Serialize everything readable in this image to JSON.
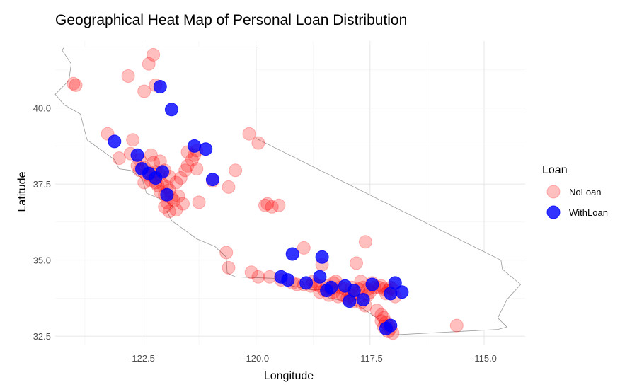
{
  "chart_data": {
    "type": "scatter",
    "title": "Geographical Heat Map of Personal Loan Distribution",
    "xlabel": "Longitude",
    "ylabel": "Latitude",
    "xlim": [
      -124.4,
      -114.1
    ],
    "ylim": [
      32.2,
      42.2
    ],
    "x_ticks": [
      -122.5,
      -120.0,
      -117.5,
      -115.0
    ],
    "x_tick_labels": [
      "-122.5",
      "-120.0",
      "-117.5",
      "-115.0"
    ],
    "y_ticks": [
      32.5,
      35.0,
      37.5,
      40.0
    ],
    "y_tick_labels": [
      "32.5",
      "35.0",
      "37.5",
      "40.0"
    ],
    "grid": true,
    "legend": {
      "title": "Loan",
      "placement": "right",
      "entries": [
        {
          "label": "NoLoan",
          "color": "#ff0000",
          "alpha": 0.25
        },
        {
          "label": "WithLoan",
          "color": "#0000ff",
          "alpha": 0.8
        }
      ]
    },
    "series": [
      {
        "name": "NoLoan",
        "color": "#ff0000",
        "points": [
          [
            -124.0,
            40.8
          ],
          [
            -123.95,
            40.75
          ],
          [
            -122.25,
            41.75
          ],
          [
            -122.35,
            41.45
          ],
          [
            -122.8,
            41.05
          ],
          [
            -122.45,
            40.55
          ],
          [
            -122.2,
            40.75
          ],
          [
            -123.25,
            39.15
          ],
          [
            -122.7,
            38.95
          ],
          [
            -120.15,
            39.15
          ],
          [
            -119.95,
            38.85
          ],
          [
            -123.0,
            38.35
          ],
          [
            -122.75,
            38.5
          ],
          [
            -122.55,
            38.3
          ],
          [
            -122.3,
            38.45
          ],
          [
            -122.6,
            38.1
          ],
          [
            -122.45,
            38.05
          ],
          [
            -122.25,
            38.2
          ],
          [
            -122.1,
            38.25
          ],
          [
            -122.55,
            37.95
          ],
          [
            -122.4,
            37.8
          ],
          [
            -122.3,
            37.85
          ],
          [
            -122.25,
            37.75
          ],
          [
            -122.2,
            37.9
          ],
          [
            -122.1,
            37.8
          ],
          [
            -122.0,
            37.95
          ],
          [
            -121.9,
            37.75
          ],
          [
            -122.45,
            37.55
          ],
          [
            -122.3,
            37.6
          ],
          [
            -122.2,
            37.55
          ],
          [
            -122.15,
            37.45
          ],
          [
            -122.05,
            37.5
          ],
          [
            -121.95,
            37.4
          ],
          [
            -122.1,
            37.25
          ],
          [
            -122.0,
            37.15
          ],
          [
            -121.9,
            37.3
          ],
          [
            -121.85,
            37.05
          ],
          [
            -121.8,
            36.95
          ],
          [
            -121.95,
            36.9
          ],
          [
            -122.0,
            36.75
          ],
          [
            -121.9,
            36.6
          ],
          [
            -121.75,
            36.65
          ],
          [
            -121.6,
            36.85
          ],
          [
            -121.7,
            37.1
          ],
          [
            -121.75,
            37.55
          ],
          [
            -121.55,
            37.95
          ],
          [
            -121.5,
            38.1
          ],
          [
            -121.4,
            38.3
          ],
          [
            -121.3,
            38.6
          ],
          [
            -121.35,
            38.45
          ],
          [
            -121.5,
            38.55
          ],
          [
            -121.3,
            38.0
          ],
          [
            -121.25,
            36.9
          ],
          [
            -121.65,
            37.7
          ],
          [
            -120.95,
            37.6
          ],
          [
            -120.6,
            37.4
          ],
          [
            -120.45,
            37.95
          ],
          [
            -119.8,
            36.8
          ],
          [
            -119.75,
            36.85
          ],
          [
            -119.65,
            36.75
          ],
          [
            -119.5,
            36.8
          ],
          [
            -120.65,
            35.25
          ],
          [
            -120.6,
            34.75
          ],
          [
            -120.1,
            34.6
          ],
          [
            -119.95,
            34.45
          ],
          [
            -119.7,
            34.45
          ],
          [
            -119.45,
            34.35
          ],
          [
            -119.2,
            34.25
          ],
          [
            -119.1,
            34.2
          ],
          [
            -118.95,
            34.2
          ],
          [
            -118.8,
            34.15
          ],
          [
            -118.7,
            34.2
          ],
          [
            -118.6,
            34.15
          ],
          [
            -118.5,
            34.0
          ],
          [
            -118.45,
            34.15
          ],
          [
            -118.35,
            34.05
          ],
          [
            -118.3,
            33.95
          ],
          [
            -118.2,
            33.8
          ],
          [
            -118.15,
            34.1
          ],
          [
            -118.1,
            33.85
          ],
          [
            -118.0,
            33.75
          ],
          [
            -117.95,
            33.7
          ],
          [
            -117.9,
            33.85
          ],
          [
            -117.85,
            33.65
          ],
          [
            -117.8,
            33.9
          ],
          [
            -117.75,
            34.05
          ],
          [
            -117.7,
            33.6
          ],
          [
            -117.65,
            34.1
          ],
          [
            -117.6,
            33.5
          ],
          [
            -117.55,
            34.05
          ],
          [
            -117.5,
            33.95
          ],
          [
            -117.4,
            34.1
          ],
          [
            -117.3,
            34.1
          ],
          [
            -117.25,
            34.15
          ],
          [
            -117.2,
            34.05
          ],
          [
            -117.15,
            33.9
          ],
          [
            -117.1,
            34.0
          ],
          [
            -117.05,
            34.1
          ],
          [
            -117.0,
            34.05
          ],
          [
            -117.25,
            33.2
          ],
          [
            -117.2,
            33.1
          ],
          [
            -117.15,
            32.95
          ],
          [
            -117.1,
            32.85
          ],
          [
            -117.05,
            32.75
          ],
          [
            -117.0,
            32.6
          ],
          [
            -117.1,
            32.65
          ],
          [
            -117.2,
            32.8
          ],
          [
            -117.25,
            33.0
          ],
          [
            -117.35,
            33.35
          ],
          [
            -118.95,
            35.4
          ],
          [
            -118.55,
            34.85
          ],
          [
            -117.8,
            34.9
          ],
          [
            -117.6,
            35.6
          ],
          [
            -118.3,
            34.25
          ],
          [
            -117.7,
            34.3
          ],
          [
            -117.9,
            34.1
          ],
          [
            -118.75,
            34.3
          ],
          [
            -118.4,
            33.85
          ],
          [
            -118.25,
            34.3
          ],
          [
            -117.45,
            34.25
          ],
          [
            -116.95,
            33.8
          ],
          [
            -115.6,
            32.85
          ],
          [
            -118.05,
            34.05
          ],
          [
            -117.55,
            33.85
          ],
          [
            -118.6,
            33.95
          ]
        ]
      },
      {
        "name": "WithLoan",
        "color": "#0000ff",
        "points": [
          [
            -122.1,
            40.7
          ],
          [
            -121.85,
            39.95
          ],
          [
            -123.1,
            38.9
          ],
          [
            -121.35,
            38.75
          ],
          [
            -121.1,
            38.65
          ],
          [
            -120.95,
            37.65
          ],
          [
            -122.6,
            38.45
          ],
          [
            -122.5,
            38.0
          ],
          [
            -122.2,
            37.7
          ],
          [
            -122.05,
            37.9
          ],
          [
            -121.95,
            37.15
          ],
          [
            -122.35,
            37.85
          ],
          [
            -119.2,
            35.2
          ],
          [
            -118.55,
            35.1
          ],
          [
            -119.45,
            34.45
          ],
          [
            -119.3,
            34.35
          ],
          [
            -118.9,
            34.25
          ],
          [
            -118.6,
            34.45
          ],
          [
            -118.35,
            34.1
          ],
          [
            -118.05,
            34.15
          ],
          [
            -117.85,
            34.0
          ],
          [
            -117.45,
            34.2
          ],
          [
            -117.05,
            33.9
          ],
          [
            -116.95,
            34.25
          ],
          [
            -116.8,
            33.95
          ],
          [
            -117.15,
            32.75
          ],
          [
            -117.05,
            32.85
          ],
          [
            -117.65,
            33.7
          ],
          [
            -117.95,
            33.65
          ],
          [
            -118.45,
            34.0
          ]
        ]
      }
    ],
    "annotations": []
  }
}
